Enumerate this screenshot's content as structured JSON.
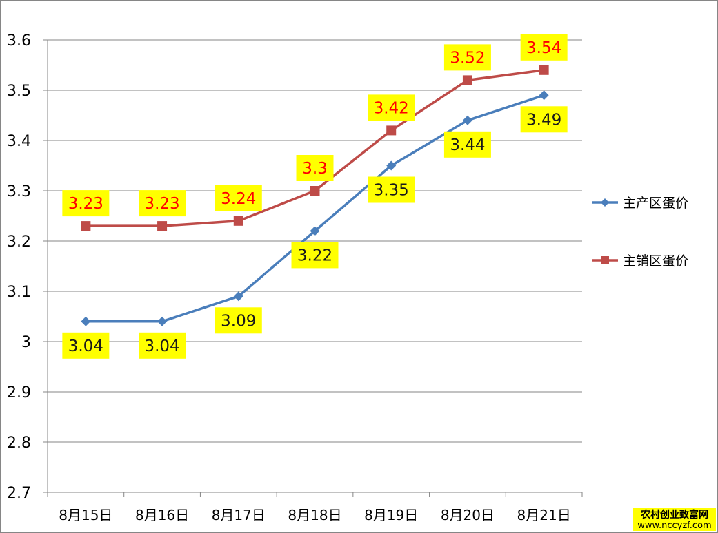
{
  "chart_data": {
    "type": "line",
    "categories": [
      "8月15日",
      "8月16日",
      "8月17日",
      "8月18日",
      "8月19日",
      "8月20日",
      "8月21日"
    ],
    "series": [
      {
        "name": "主产区蛋价",
        "values": [
          3.04,
          3.04,
          3.09,
          3.22,
          3.35,
          3.44,
          3.49
        ],
        "color": "#4a7ebb",
        "marker": "diamond",
        "label_color": "#1a1a1a",
        "label_position": "below"
      },
      {
        "name": "主销区蛋价",
        "values": [
          3.23,
          3.23,
          3.24,
          3.3,
          3.42,
          3.52,
          3.54
        ],
        "color": "#be4b48",
        "marker": "square",
        "label_color": "#ff0000",
        "label_position": "above"
      }
    ],
    "ylim": [
      2.7,
      3.6
    ],
    "y_ticks": [
      "2.7",
      "2.8",
      "2.9",
      "3",
      "3.1",
      "3.2",
      "3.3",
      "3.4",
      "3.5",
      "3.6"
    ],
    "grid": "horizontal",
    "legend_position": "right",
    "data_label_background": "#ffff00",
    "title": "",
    "xlabel": "",
    "ylabel": ""
  },
  "watermark": {
    "line1": "农村创业致富网",
    "line2": "www.nccyzf.com",
    "background": "#ffff00"
  }
}
